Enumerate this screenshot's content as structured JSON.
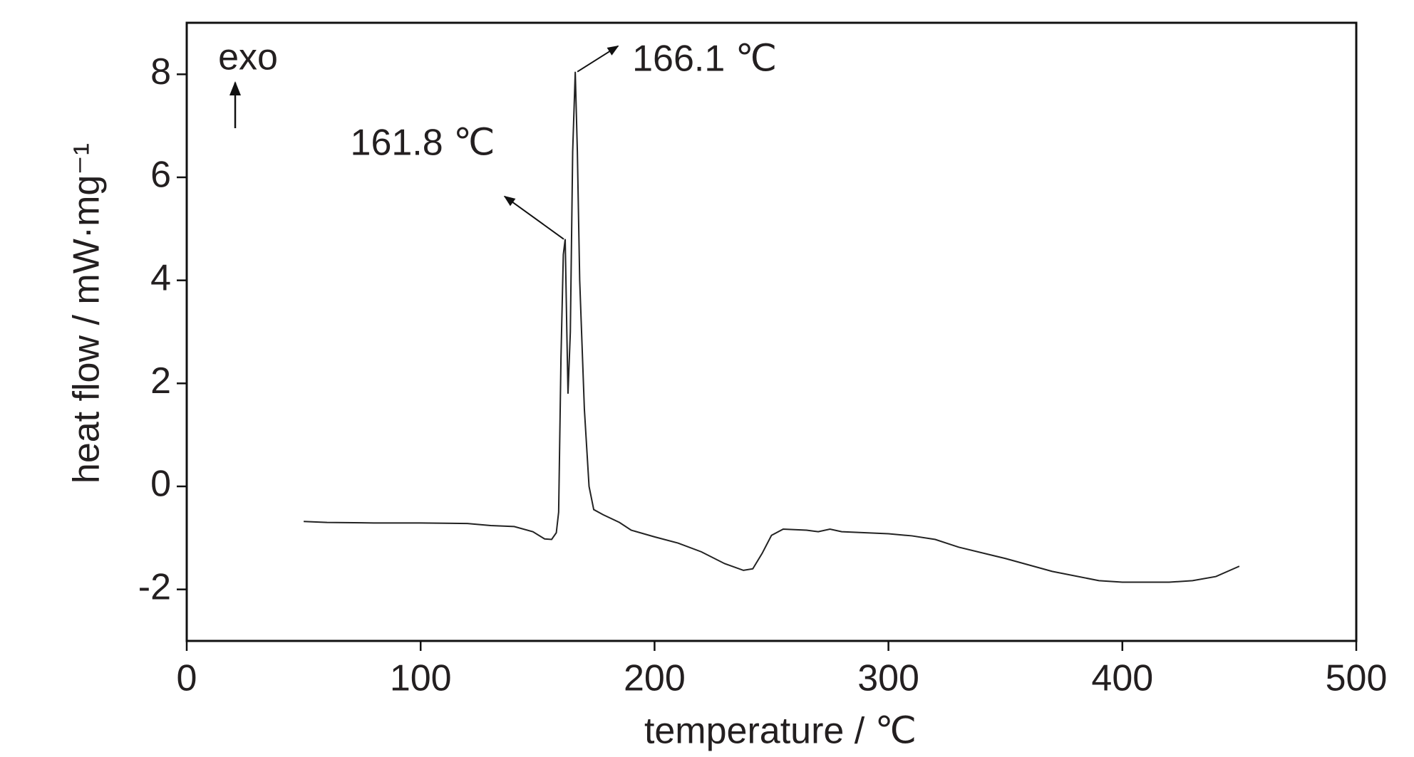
{
  "chart_data": {
    "type": "line",
    "xlabel": "temperature / ℃",
    "ylabel": "heat flow / mW·mg⁻¹",
    "xlim": [
      0,
      500
    ],
    "xticks": [
      0,
      100,
      200,
      300,
      400,
      500
    ],
    "ylim": [
      -3,
      9
    ],
    "yticks": [
      -2,
      0,
      2,
      4,
      6,
      8
    ],
    "grid": false,
    "color": "#222222",
    "x": [
      50,
      60,
      80,
      100,
      120,
      130,
      140,
      148,
      153,
      156,
      158,
      159,
      160,
      161,
      161.8,
      162.5,
      163,
      164,
      165,
      166.1,
      167,
      168,
      170,
      172,
      174,
      178,
      185,
      190,
      200,
      210,
      220,
      230,
      238,
      242,
      246,
      250,
      255,
      265,
      270,
      275,
      280,
      300,
      310,
      320,
      330,
      350,
      370,
      390,
      400,
      420,
      430,
      440,
      450
    ],
    "values": [
      -0.68,
      -0.7,
      -0.71,
      -0.71,
      -0.72,
      -0.76,
      -0.78,
      -0.88,
      -1.02,
      -1.03,
      -0.9,
      -0.5,
      2.5,
      4.5,
      4.8,
      3,
      1.8,
      3,
      6.5,
      8.05,
      6.5,
      4,
      1.5,
      0,
      -0.45,
      -0.55,
      -0.7,
      -0.85,
      -0.98,
      -1.1,
      -1.27,
      -1.5,
      -1.63,
      -1.6,
      -1.3,
      -0.95,
      -0.83,
      -0.85,
      -0.88,
      -0.83,
      -0.88,
      -0.92,
      -0.96,
      -1.03,
      -1.18,
      -1.4,
      -1.65,
      -1.83,
      -1.86,
      -1.86,
      -1.83,
      -1.75,
      -1.55
    ],
    "annotations": [
      {
        "text": "161.8 ℃",
        "x": 161.8,
        "y": 4.8
      },
      {
        "text": "166.1 ℃",
        "x": 166.1,
        "y": 8.05
      }
    ],
    "exo_label": "exo"
  }
}
